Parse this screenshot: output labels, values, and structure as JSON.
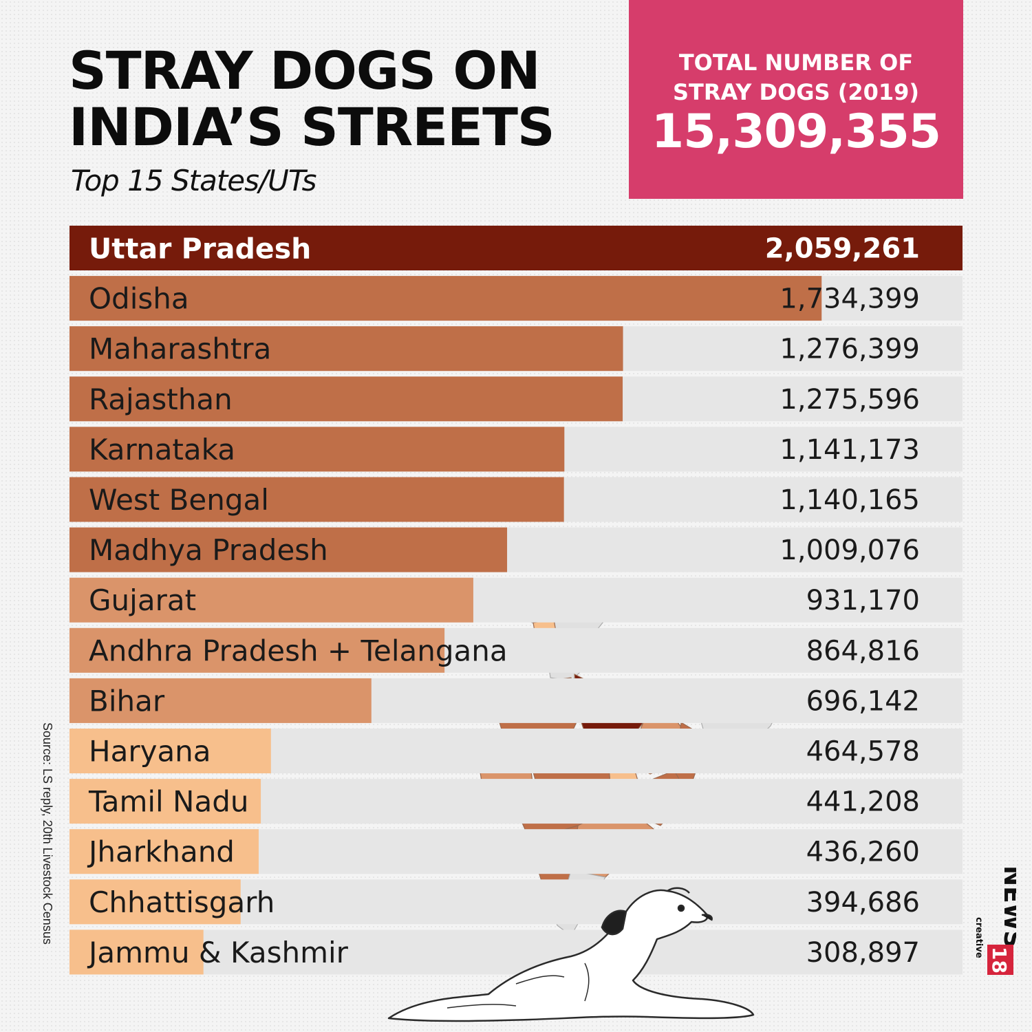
{
  "header": {
    "title_line1": "STRAY DOGS ON",
    "title_line2": "INDIA’S STREETS",
    "subtitle": "Top 15 States/UTs"
  },
  "total": {
    "label_line1": "TOTAL NUMBER OF",
    "label_line2": "STRAY DOGS (2019)",
    "value": "15,309,355"
  },
  "source": "Source: LS reply, 20th Livestock Census",
  "logo": {
    "word": "NEWS",
    "number": "18",
    "tag": "creative"
  },
  "colors": {
    "top": "#761b0b",
    "high": "#bf6f48",
    "mid": "#da946a",
    "low": "#f7bf8c",
    "accent": "#d63d6b",
    "track": "#e6e6e6"
  },
  "chart_data": {
    "type": "bar",
    "orientation": "horizontal",
    "categories": [
      "Uttar Pradesh",
      "Odisha",
      "Maharashtra",
      "Rajasthan",
      "Karnataka",
      "West Bengal",
      "Madhya Pradesh",
      "Gujarat",
      "Andhra Pradesh + Telangana",
      "Bihar",
      "Haryana",
      "Tamil Nadu",
      "Jharkhand",
      "Chhattisgarh",
      "Jammu & Kashmir"
    ],
    "values": [
      2059261,
      1734399,
      1276399,
      1275596,
      1141173,
      1140165,
      1009076,
      931170,
      864816,
      696142,
      464578,
      441208,
      436260,
      394686,
      308897
    ],
    "value_labels": [
      "2,059,261",
      "1,734,399",
      "1,276,399",
      "1,275,596",
      "1,141,173",
      "1,140,165",
      "1,009,076",
      "931,170",
      "864,816",
      "696,142",
      "464,578",
      "441,208",
      "436,260",
      "394,686",
      "308,897"
    ],
    "color_groups": [
      "top",
      "high",
      "high",
      "high",
      "high",
      "high",
      "high",
      "mid",
      "mid",
      "mid",
      "low",
      "low",
      "low",
      "low",
      "low"
    ],
    "xlim": [
      0,
      2059261
    ]
  }
}
